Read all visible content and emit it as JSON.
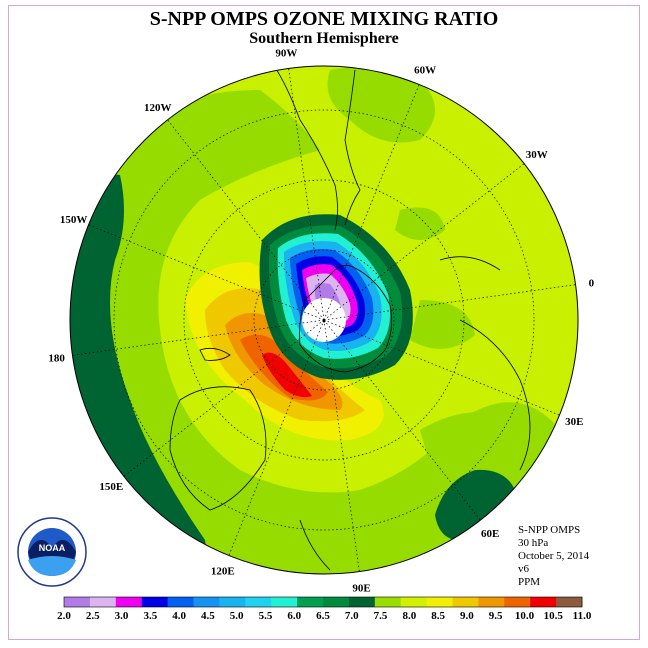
{
  "title": "S-NPP OMPS OZONE MIXING RATIO",
  "subtitle": "Southern Hemisphere",
  "longitude_labels": [
    {
      "text": "90W",
      "angle": 262
    },
    {
      "text": "60W",
      "angle": 292
    },
    {
      "text": "30W",
      "angle": 322
    },
    {
      "text": "0",
      "angle": 352
    },
    {
      "text": "30E",
      "angle": 22
    },
    {
      "text": "60E",
      "angle": 52
    },
    {
      "text": "90E",
      "angle": 82
    },
    {
      "text": "120E",
      "angle": 112
    },
    {
      "text": "150E",
      "angle": 142
    },
    {
      "text": "180",
      "angle": 172
    },
    {
      "text": "150W",
      "angle": 202
    },
    {
      "text": "120W",
      "angle": 232
    }
  ],
  "info": {
    "instrument": "S-NPP OMPS",
    "level": "30 hPa",
    "date": "October 5, 2014",
    "version": "v6",
    "units": "PPM"
  },
  "logo": {
    "text": "NOAA"
  },
  "colorbar": {
    "labels": [
      "2.0",
      "2.5",
      "3.0",
      "3.5",
      "4.0",
      "4.5",
      "5.0",
      "5.5",
      "6.0",
      "6.5",
      "7.0",
      "7.5",
      "8.0",
      "8.5",
      "9.0",
      "9.5",
      "10.0",
      "10.5",
      "11.0"
    ],
    "colors": [
      "#b27ce8",
      "#dcb4f0",
      "#f000f0",
      "#0000e6",
      "#0060f0",
      "#1494f0",
      "#18b4f0",
      "#1ed2f0",
      "#22f0d2",
      "#00a050",
      "#008c3c",
      "#006432",
      "#9ade00",
      "#d2f000",
      "#f0f000",
      "#f0c800",
      "#f09600",
      "#f06400",
      "#f00000",
      "#8c5a3c"
    ]
  },
  "colors": {
    "background_field": "#c8f000",
    "green_band": "#96dc00",
    "dark_green": "#006432",
    "land_lines": "#000000"
  }
}
